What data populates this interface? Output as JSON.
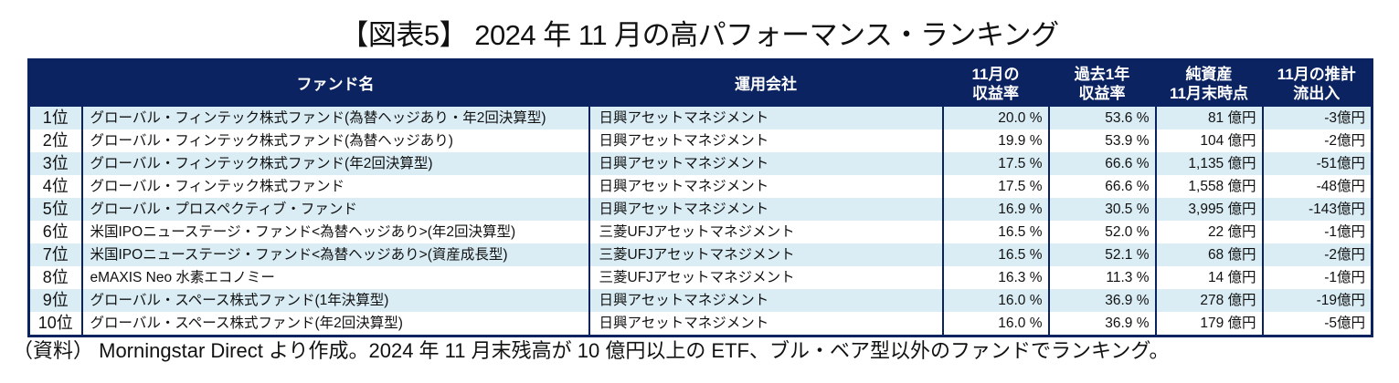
{
  "title": "【図表5】 2024 年 11 月の高パフォーマンス・ランキング",
  "table": {
    "headers": [
      {
        "line1": "",
        "line2": ""
      },
      {
        "line1": "ファンド名",
        "line2": ""
      },
      {
        "line1": "運用会社",
        "line2": ""
      },
      {
        "line1": "11月の",
        "line2": "収益率"
      },
      {
        "line1": "過去1年",
        "line2": "収益率"
      },
      {
        "line1": "純資産",
        "line2": "11月末時点"
      },
      {
        "line1": "11月の推計",
        "line2": "流出入"
      }
    ],
    "rows": [
      {
        "rank": "1位",
        "fund": "グローバル・フィンテック株式ファンド(為替ヘッジあり・年2回決算型)",
        "company": "日興アセットマネジメント",
        "ret_nov": "20.0 %",
        "ret_1y": "53.6 %",
        "nav": "81 億円",
        "flow": "-3億円"
      },
      {
        "rank": "2位",
        "fund": "グローバル・フィンテック株式ファンド(為替ヘッジあり)",
        "company": "日興アセットマネジメント",
        "ret_nov": "19.9 %",
        "ret_1y": "53.9 %",
        "nav": "104 億円",
        "flow": "-2億円"
      },
      {
        "rank": "3位",
        "fund": "グローバル・フィンテック株式ファンド(年2回決算型)",
        "company": "日興アセットマネジメント",
        "ret_nov": "17.5 %",
        "ret_1y": "66.6 %",
        "nav": "1,135 億円",
        "flow": "-51億円"
      },
      {
        "rank": "4位",
        "fund": "グローバル・フィンテック株式ファンド",
        "company": "日興アセットマネジメント",
        "ret_nov": "17.5 %",
        "ret_1y": "66.6 %",
        "nav": "1,558 億円",
        "flow": "-48億円"
      },
      {
        "rank": "5位",
        "fund": "グローバル・プロスペクティブ・ファンド",
        "company": "日興アセットマネジメント",
        "ret_nov": "16.9 %",
        "ret_1y": "30.5 %",
        "nav": "3,995 億円",
        "flow": "-143億円"
      },
      {
        "rank": "6位",
        "fund": "米国IPOニューステージ・ファンド<為替ヘッジあり>(年2回決算型)",
        "company": "三菱UFJアセットマネジメント",
        "ret_nov": "16.5 %",
        "ret_1y": "52.0 %",
        "nav": "22 億円",
        "flow": "-1億円"
      },
      {
        "rank": "7位",
        "fund": "米国IPOニューステージ・ファンド<為替ヘッジあり>(資産成長型)",
        "company": "三菱UFJアセットマネジメント",
        "ret_nov": "16.5 %",
        "ret_1y": "52.1 %",
        "nav": "68 億円",
        "flow": "-2億円"
      },
      {
        "rank": "8位",
        "fund": "eMAXIS Neo 水素エコノミー",
        "company": "三菱UFJアセットマネジメント",
        "ret_nov": "16.3 %",
        "ret_1y": "11.3 %",
        "nav": "14 億円",
        "flow": "-1億円"
      },
      {
        "rank": "9位",
        "fund": "グローバル・スペース株式ファンド(1年決算型)",
        "company": "日興アセットマネジメント",
        "ret_nov": "16.0 %",
        "ret_1y": "36.9 %",
        "nav": "278 億円",
        "flow": "-19億円"
      },
      {
        "rank": "10位",
        "fund": "グローバル・スペース株式ファンド(年2回決算型)",
        "company": "日興アセットマネジメント",
        "ret_nov": "16.0 %",
        "ret_1y": "36.9 %",
        "nav": "179 億円",
        "flow": "-5億円"
      }
    ]
  },
  "note": "（資料） Morningstar Direct より作成。2024 年 11 月末残高が 10 億円以上の ETF、ブル・ベア型以外のファンドでランキング。",
  "colors": {
    "header_bg": "#0b2360",
    "row_alt_bg": "#daedf5",
    "border": "#0b2260"
  }
}
